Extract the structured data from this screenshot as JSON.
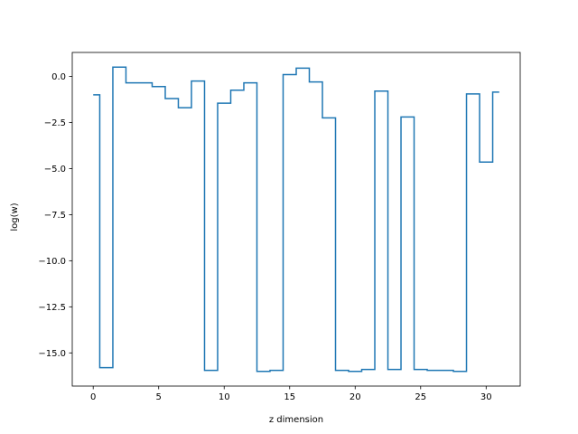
{
  "chart_data": {
    "type": "line",
    "drawstyle": "steps-mid",
    "title": "",
    "xlabel": "z dimension",
    "ylabel": "log(w)",
    "xlim": [
      -1.6,
      32.6
    ],
    "ylim": [
      -16.8,
      1.3
    ],
    "xticks": [
      0,
      5,
      10,
      15,
      20,
      25,
      30
    ],
    "yticks": [
      0.0,
      -2.5,
      -5.0,
      -7.5,
      -10.0,
      -12.5,
      -15.0
    ],
    "xtick_labels": [
      "0",
      "5",
      "10",
      "15",
      "20",
      "25",
      "30"
    ],
    "ytick_labels": [
      "0.0",
      "−2.5",
      "−5.0",
      "−7.5",
      "−10.0",
      "−12.5",
      "−15.0"
    ],
    "grid": false,
    "line_color": "#1f77b4",
    "series": [
      {
        "x": [
          0,
          1,
          2,
          3,
          4,
          5,
          6,
          7,
          8,
          9,
          10,
          11,
          12,
          13,
          14,
          15,
          16,
          17,
          18,
          19,
          20,
          21,
          22,
          23,
          24,
          25,
          26,
          27,
          28,
          29,
          30,
          31
        ],
        "values": [
          -1.0,
          -15.8,
          0.5,
          -0.35,
          -0.35,
          -0.55,
          -1.2,
          -1.7,
          -0.25,
          -15.95,
          -1.45,
          -0.75,
          -0.35,
          -16.0,
          -15.95,
          0.1,
          0.45,
          -0.3,
          -2.25,
          -15.95,
          -16.0,
          -15.9,
          -0.8,
          -15.9,
          -2.2,
          -15.9,
          -15.95,
          -15.95,
          -16.0,
          -0.95,
          -4.65,
          -0.85
        ]
      }
    ]
  }
}
